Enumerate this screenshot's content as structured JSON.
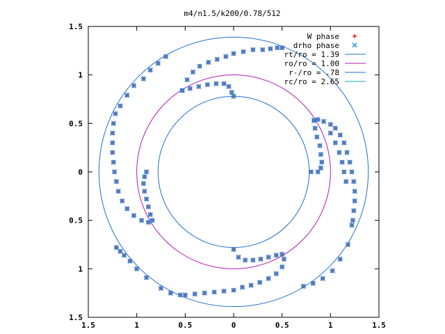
{
  "chart_data": {
    "type": "scatter",
    "title": "m4/n1.5/k200/0.78/512",
    "xlabel": "",
    "ylabel": "",
    "xlim": [
      -1.5,
      1.5
    ],
    "ylim": [
      -1.5,
      1.5
    ],
    "x_ticks": [
      -1.5,
      -1,
      -0.5,
      0,
      0.5,
      1,
      1.5
    ],
    "y_ticks": [
      -1.5,
      -1,
      -0.5,
      0,
      0.5,
      1,
      1.5
    ],
    "x_tick_labels": [
      "1.5",
      "1",
      "0.5",
      "0",
      "0.5",
      "1",
      "1.5"
    ],
    "y_tick_labels": [
      "1.5",
      "1",
      "0.5",
      "0",
      "0.5",
      "1",
      "1.5"
    ],
    "grid": false,
    "legend_position": "top-right",
    "legend": [
      {
        "label": "W phase",
        "marker": "+",
        "color": "#e8191b"
      },
      {
        "label": "drho phase",
        "marker": "x",
        "color": "#1f8fe8"
      },
      {
        "label": "rt/ro = 1.39",
        "line": true,
        "color": "#1f6fcf"
      },
      {
        "label": "ro/ro = 1.00",
        "line": true,
        "color": "#b01ab0"
      },
      {
        "label": "r-/ro = .78",
        "line": true,
        "color": "#1f6fcf"
      },
      {
        "label": "rc/ro = 2.65",
        "line": true,
        "color": "#10a8a8"
      }
    ],
    "circles": [
      {
        "name": "rt/ro = 1.39",
        "r": 1.39,
        "color": "#1f6fcf"
      },
      {
        "name": "ro/ro = 1.00",
        "r": 1.0,
        "color": "#b01ab0"
      },
      {
        "name": "r-/ro = .78",
        "r": 0.78,
        "color": "#1f6fcf"
      }
    ],
    "series": [
      {
        "name": "W phase",
        "marker": "+",
        "color": "#e8191b",
        "points": [
          [
            -0.53,
            0.84
          ],
          [
            -0.48,
            0.95
          ],
          [
            -0.42,
            1.03
          ],
          [
            -0.35,
            1.09
          ],
          [
            -0.26,
            1.13
          ],
          [
            -0.17,
            1.16
          ],
          [
            -0.08,
            1.19
          ],
          [
            0.0,
            1.22
          ],
          [
            0.1,
            1.24
          ],
          [
            0.2,
            1.26
          ],
          [
            0.3,
            1.26
          ],
          [
            0.38,
            1.27
          ],
          [
            0.45,
            1.28
          ],
          [
            0.5,
            1.28
          ],
          [
            -0.53,
            0.84
          ],
          [
            -0.45,
            0.86
          ],
          [
            -0.36,
            0.88
          ],
          [
            -0.27,
            0.9
          ],
          [
            -0.18,
            0.91
          ],
          [
            -0.1,
            0.91
          ],
          [
            -0.05,
            0.88
          ],
          [
            -0.02,
            0.82
          ],
          [
            0.0,
            0.78
          ],
          [
            -0.7,
            1.19
          ],
          [
            -0.78,
            1.12
          ],
          [
            -0.86,
            1.05
          ],
          [
            -0.93,
            0.96
          ],
          [
            -1.03,
            0.89
          ],
          [
            -1.1,
            0.79
          ],
          [
            -1.17,
            0.68
          ],
          [
            -1.22,
            0.6
          ],
          [
            0.83,
            0.53
          ],
          [
            0.87,
            0.54
          ],
          [
            0.93,
            0.52
          ],
          [
            1.0,
            0.49
          ],
          [
            1.05,
            0.45
          ],
          [
            1.1,
            0.38
          ],
          [
            1.14,
            0.3
          ],
          [
            1.17,
            0.2
          ],
          [
            1.2,
            0.1
          ],
          [
            1.22,
            0.0
          ],
          [
            1.24,
            -0.1
          ],
          [
            1.25,
            -0.2
          ],
          [
            1.25,
            -0.3
          ],
          [
            1.24,
            -0.4
          ],
          [
            1.23,
            -0.5
          ],
          [
            0.83,
            0.53
          ],
          [
            0.84,
            0.45
          ],
          [
            0.86,
            0.36
          ],
          [
            0.89,
            0.27
          ],
          [
            0.9,
            0.18
          ],
          [
            0.91,
            0.1
          ],
          [
            0.9,
            0.04
          ],
          [
            0.87,
            0.0
          ],
          [
            0.8,
            0.0
          ],
          [
            1.0,
            0.4
          ],
          [
            1.05,
            0.3
          ],
          [
            1.09,
            0.2
          ],
          [
            1.12,
            0.1
          ],
          [
            1.14,
            0.0
          ],
          [
            1.16,
            -0.1
          ],
          [
            1.22,
            -0.55
          ],
          [
            1.18,
            -0.75
          ],
          [
            1.1,
            -0.9
          ],
          [
            1.02,
            -1.02
          ],
          [
            0.92,
            -1.1
          ],
          [
            0.82,
            -1.15
          ],
          [
            0.72,
            -1.18
          ],
          [
            0.0,
            -0.8
          ],
          [
            0.05,
            -0.88
          ],
          [
            0.12,
            -0.91
          ],
          [
            0.2,
            -0.91
          ],
          [
            0.28,
            -0.9
          ],
          [
            0.36,
            -0.88
          ],
          [
            0.44,
            -0.86
          ],
          [
            0.5,
            -0.85
          ],
          [
            0.52,
            -0.9
          ],
          [
            0.5,
            -0.98
          ],
          [
            0.44,
            -1.05
          ],
          [
            0.36,
            -1.1
          ],
          [
            0.27,
            -1.14
          ],
          [
            0.18,
            -1.17
          ],
          [
            0.09,
            -1.19
          ],
          [
            0.0,
            -1.22
          ],
          [
            -0.1,
            -1.23
          ],
          [
            -0.2,
            -1.24
          ],
          [
            -0.3,
            -1.25
          ],
          [
            -0.4,
            -1.26
          ],
          [
            -0.5,
            -1.27
          ],
          [
            -0.55,
            -1.27
          ],
          [
            -0.65,
            -1.25
          ],
          [
            -0.75,
            -1.2
          ],
          [
            -0.9,
            -1.09
          ],
          [
            -1.0,
            -1.0
          ],
          [
            -1.07,
            -0.92
          ],
          [
            -1.13,
            -0.86
          ],
          [
            -1.17,
            -0.82
          ],
          [
            -1.21,
            -0.78
          ],
          [
            -0.9,
            0.0
          ],
          [
            -0.92,
            -0.05
          ],
          [
            -0.93,
            -0.12
          ],
          [
            -0.92,
            -0.2
          ],
          [
            -0.9,
            -0.28
          ],
          [
            -0.88,
            -0.36
          ],
          [
            -0.86,
            -0.44
          ],
          [
            -0.84,
            -0.5
          ],
          [
            -0.88,
            -0.52
          ],
          [
            -0.95,
            -0.5
          ],
          [
            -1.03,
            -0.45
          ],
          [
            -1.1,
            -0.38
          ],
          [
            -1.15,
            -0.3
          ],
          [
            -1.19,
            -0.2
          ],
          [
            -1.21,
            -0.1
          ],
          [
            -1.23,
            0.0
          ],
          [
            -1.24,
            0.1
          ],
          [
            -1.25,
            0.2
          ],
          [
            -1.25,
            0.3
          ],
          [
            -1.25,
            0.4
          ],
          [
            -1.24,
            0.5
          ]
        ]
      },
      {
        "name": "drho phase",
        "marker": "x",
        "color": "#1f8fe8",
        "points": [
          [
            -0.53,
            0.84
          ],
          [
            -0.48,
            0.95
          ],
          [
            -0.42,
            1.03
          ],
          [
            -0.35,
            1.09
          ],
          [
            -0.26,
            1.13
          ],
          [
            -0.17,
            1.16
          ],
          [
            -0.08,
            1.19
          ],
          [
            0.0,
            1.22
          ],
          [
            0.1,
            1.24
          ],
          [
            0.2,
            1.26
          ],
          [
            0.3,
            1.26
          ],
          [
            0.38,
            1.27
          ],
          [
            0.45,
            1.28
          ],
          [
            0.5,
            1.28
          ],
          [
            -0.53,
            0.84
          ],
          [
            -0.45,
            0.86
          ],
          [
            -0.36,
            0.88
          ],
          [
            -0.27,
            0.9
          ],
          [
            -0.18,
            0.91
          ],
          [
            -0.1,
            0.91
          ],
          [
            -0.05,
            0.88
          ],
          [
            -0.02,
            0.82
          ],
          [
            0.0,
            0.78
          ],
          [
            -0.7,
            1.19
          ],
          [
            -0.78,
            1.12
          ],
          [
            -0.86,
            1.05
          ],
          [
            -0.93,
            0.96
          ],
          [
            -1.03,
            0.89
          ],
          [
            -1.1,
            0.79
          ],
          [
            -1.17,
            0.68
          ],
          [
            -1.22,
            0.6
          ],
          [
            0.83,
            0.53
          ],
          [
            0.87,
            0.54
          ],
          [
            0.93,
            0.52
          ],
          [
            1.0,
            0.49
          ],
          [
            1.05,
            0.45
          ],
          [
            1.1,
            0.38
          ],
          [
            1.14,
            0.3
          ],
          [
            1.17,
            0.2
          ],
          [
            1.2,
            0.1
          ],
          [
            1.22,
            0.0
          ],
          [
            1.24,
            -0.1
          ],
          [
            1.25,
            -0.2
          ],
          [
            1.25,
            -0.3
          ],
          [
            1.24,
            -0.4
          ],
          [
            1.23,
            -0.5
          ],
          [
            0.83,
            0.53
          ],
          [
            0.84,
            0.45
          ],
          [
            0.86,
            0.36
          ],
          [
            0.89,
            0.27
          ],
          [
            0.9,
            0.18
          ],
          [
            0.91,
            0.1
          ],
          [
            0.9,
            0.04
          ],
          [
            0.87,
            0.0
          ],
          [
            0.8,
            0.0
          ],
          [
            1.0,
            0.4
          ],
          [
            1.05,
            0.3
          ],
          [
            1.09,
            0.2
          ],
          [
            1.12,
            0.1
          ],
          [
            1.14,
            0.0
          ],
          [
            1.16,
            -0.1
          ],
          [
            1.22,
            -0.55
          ],
          [
            1.18,
            -0.75
          ],
          [
            1.1,
            -0.9
          ],
          [
            1.02,
            -1.02
          ],
          [
            0.92,
            -1.1
          ],
          [
            0.82,
            -1.15
          ],
          [
            0.72,
            -1.18
          ],
          [
            0.0,
            -0.8
          ],
          [
            0.05,
            -0.88
          ],
          [
            0.12,
            -0.91
          ],
          [
            0.2,
            -0.91
          ],
          [
            0.28,
            -0.9
          ],
          [
            0.36,
            -0.88
          ],
          [
            0.44,
            -0.86
          ],
          [
            0.5,
            -0.85
          ],
          [
            0.52,
            -0.9
          ],
          [
            0.5,
            -0.98
          ],
          [
            0.44,
            -1.05
          ],
          [
            0.36,
            -1.1
          ],
          [
            0.27,
            -1.14
          ],
          [
            0.18,
            -1.17
          ],
          [
            0.09,
            -1.19
          ],
          [
            0.0,
            -1.22
          ],
          [
            -0.1,
            -1.23
          ],
          [
            -0.2,
            -1.24
          ],
          [
            -0.3,
            -1.25
          ],
          [
            -0.4,
            -1.26
          ],
          [
            -0.5,
            -1.27
          ],
          [
            -0.55,
            -1.27
          ],
          [
            -0.65,
            -1.25
          ],
          [
            -0.75,
            -1.2
          ],
          [
            -0.9,
            -1.09
          ],
          [
            -1.0,
            -1.0
          ],
          [
            -1.07,
            -0.92
          ],
          [
            -1.13,
            -0.86
          ],
          [
            -1.17,
            -0.82
          ],
          [
            -1.21,
            -0.78
          ],
          [
            -0.9,
            0.0
          ],
          [
            -0.92,
            -0.05
          ],
          [
            -0.93,
            -0.12
          ],
          [
            -0.92,
            -0.2
          ],
          [
            -0.9,
            -0.28
          ],
          [
            -0.88,
            -0.36
          ],
          [
            -0.86,
            -0.44
          ],
          [
            -0.84,
            -0.5
          ],
          [
            -0.88,
            -0.52
          ],
          [
            -0.95,
            -0.5
          ],
          [
            -1.03,
            -0.45
          ],
          [
            -1.1,
            -0.38
          ],
          [
            -1.15,
            -0.3
          ],
          [
            -1.19,
            -0.2
          ],
          [
            -1.21,
            -0.1
          ],
          [
            -1.23,
            0.0
          ],
          [
            -1.24,
            0.1
          ],
          [
            -1.25,
            0.2
          ],
          [
            -1.25,
            0.3
          ],
          [
            -1.25,
            0.4
          ],
          [
            -1.24,
            0.5
          ]
        ]
      }
    ]
  }
}
